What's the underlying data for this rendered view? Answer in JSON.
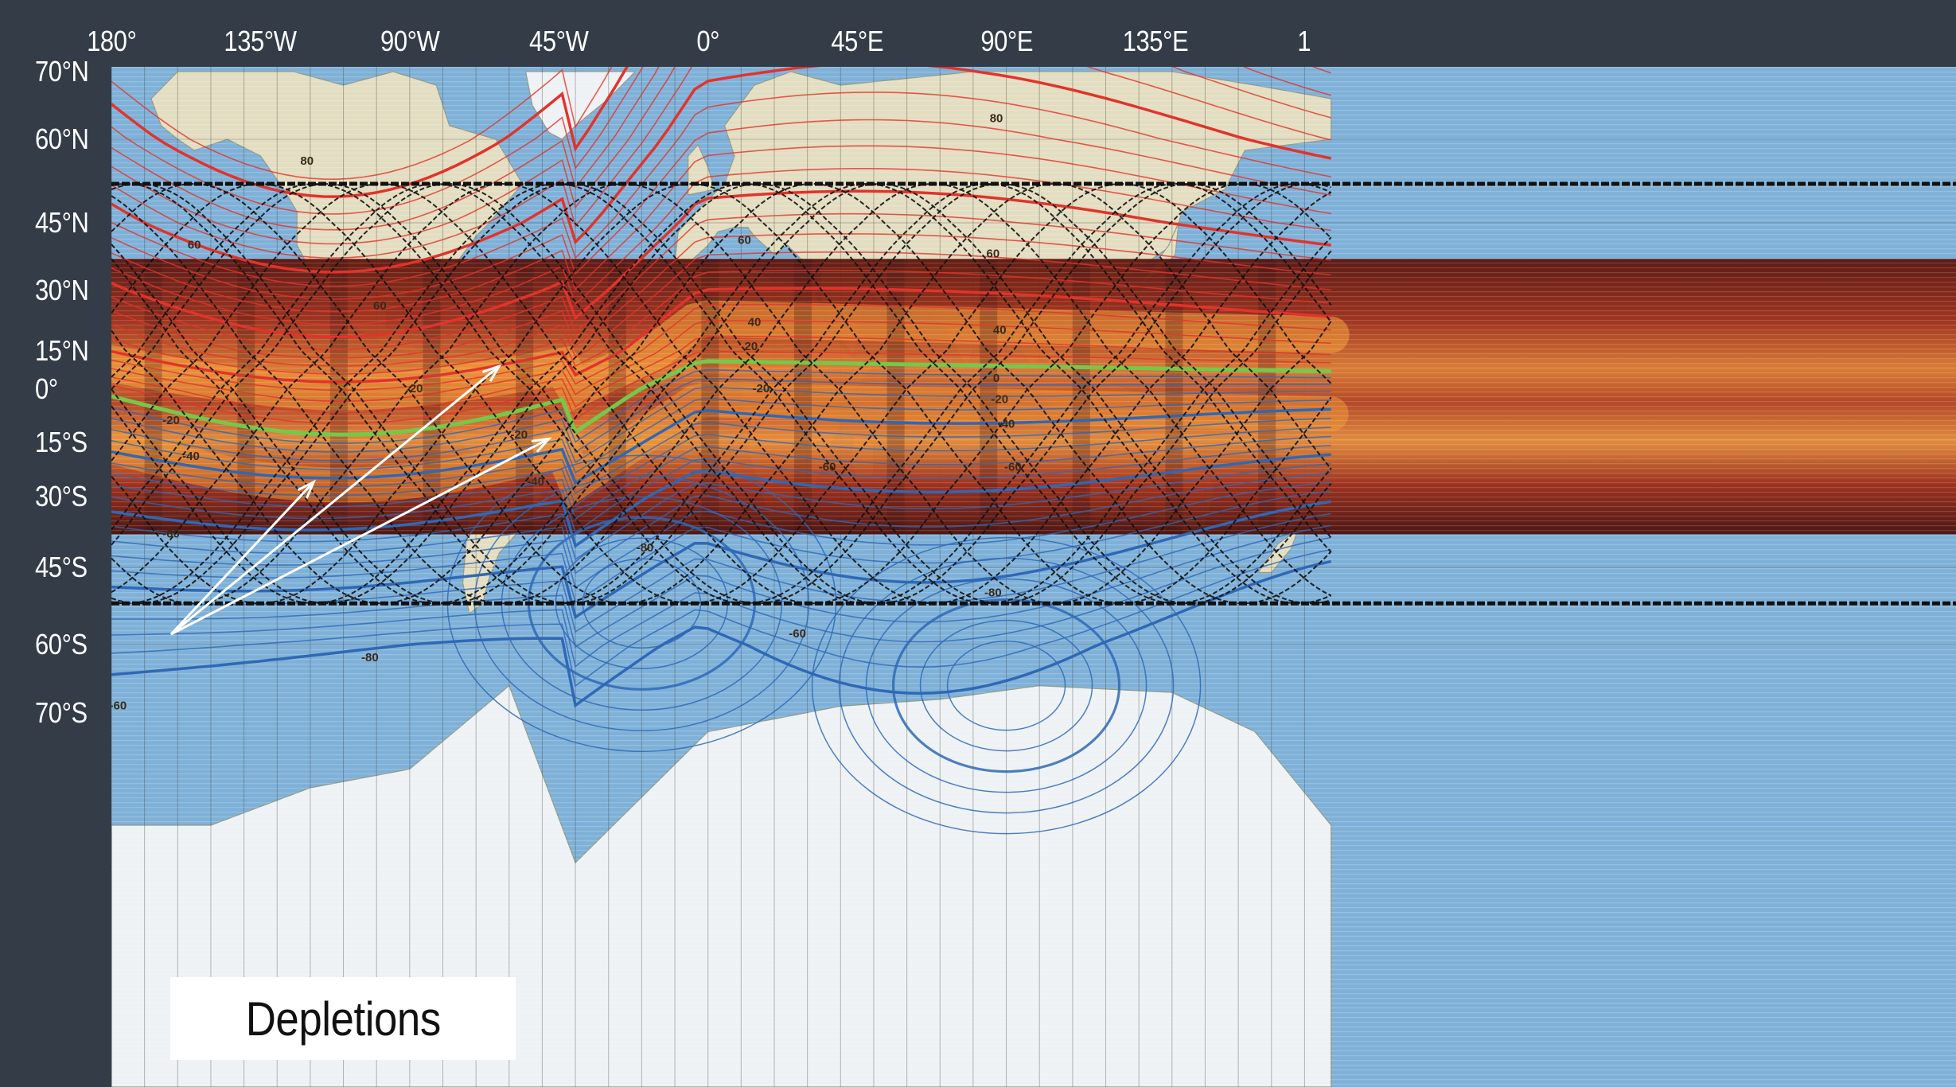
{
  "map": {
    "lon_labels": [
      {
        "text": "180°",
        "lon": -180
      },
      {
        "text": "135°W",
        "lon": -135
      },
      {
        "text": "90°W",
        "lon": -90
      },
      {
        "text": "45°W",
        "lon": -45
      },
      {
        "text": "0°",
        "lon": 0
      },
      {
        "text": "45°E",
        "lon": 45
      },
      {
        "text": "90°E",
        "lon": 90
      },
      {
        "text": "135°E",
        "lon": 135
      },
      {
        "text": "1",
        "lon": 180
      }
    ],
    "lat_labels": [
      {
        "text": "70°N",
        "lat": 70
      },
      {
        "text": "60°N",
        "lat": 60
      },
      {
        "text": "45°N",
        "lat": 45
      },
      {
        "text": "30°N",
        "lat": 30
      },
      {
        "text": "15°N",
        "lat": 15
      },
      {
        "text": "0°",
        "lat": 0
      },
      {
        "text": "15°S",
        "lat": -15
      },
      {
        "text": "30°S",
        "lat": -30
      },
      {
        "text": "45°S",
        "lat": -45
      },
      {
        "text": "60°S",
        "lat": -60
      },
      {
        "text": "70°S",
        "lat": -70
      }
    ],
    "contour_labels": [
      {
        "text": "80",
        "lon": -121,
        "lat": 56
      },
      {
        "text": "80",
        "lon": 87,
        "lat": 63
      },
      {
        "text": "60",
        "lon": -155,
        "lat": 40
      },
      {
        "text": "60",
        "lon": 11,
        "lat": 41
      },
      {
        "text": "60",
        "lon": 86,
        "lat": 38
      },
      {
        "text": "60",
        "lon": -99,
        "lat": 26
      },
      {
        "text": "40",
        "lon": 14,
        "lat": 22
      },
      {
        "text": "40",
        "lon": 88,
        "lat": 20
      },
      {
        "text": "20",
        "lon": 13,
        "lat": 16
      },
      {
        "text": "20",
        "lon": -88,
        "lat": 0
      },
      {
        "text": "0",
        "lon": 87,
        "lat": 4
      },
      {
        "text": "-20",
        "lon": 16,
        "lat": 0
      },
      {
        "text": "-20",
        "lon": 88,
        "lat": -3
      },
      {
        "text": "-20",
        "lon": -162,
        "lat": -9
      },
      {
        "text": "-20",
        "lon": -57,
        "lat": -13
      },
      {
        "text": "-40",
        "lon": -156,
        "lat": -19
      },
      {
        "text": "-40",
        "lon": 90,
        "lat": -10
      },
      {
        "text": "-40",
        "lon": -52,
        "lat": -26
      },
      {
        "text": "-60",
        "lon": 36,
        "lat": -22
      },
      {
        "text": "-60",
        "lon": 92,
        "lat": -22
      },
      {
        "text": "-60",
        "lon": -162,
        "lat": -38
      },
      {
        "text": "-80",
        "lon": -19,
        "lat": -41
      },
      {
        "text": "-80",
        "lon": 86,
        "lat": -50
      },
      {
        "text": "-80",
        "lon": -102,
        "lat": -62
      },
      {
        "text": "-60",
        "lon": 27,
        "lat": -58
      },
      {
        "text": "-60",
        "lon": -178,
        "lat": -69
      }
    ],
    "callout": {
      "text": "Depletions",
      "arrow_origin": {
        "lon": -162,
        "lat": -58
      },
      "arrow_targets": [
        {
          "lon": -119,
          "lat": -26
        },
        {
          "lon": -63,
          "lat": 9
        },
        {
          "lon": -48,
          "lat": -14
        }
      ]
    },
    "extent": {
      "lon_min": -180,
      "lon_max": 188,
      "lat_min": -72,
      "lat_max": 70
    },
    "overlay_lat_range": [
      -38,
      37
    ],
    "orbit_track_lat_limits": [
      -52,
      52
    ],
    "colors": {
      "background": "#333c47",
      "ocean": "#7fb1d8",
      "land": "#e3ddc1",
      "north_contours": "#e2332b",
      "south_contours": "#2f68b6",
      "magnetic_equator": "#74c94a",
      "plasma_dark": "#4a0c06",
      "plasma_bright": "#f3a638",
      "orbit_tracks": "#111111",
      "callout_arrows": "#ffffff"
    }
  }
}
